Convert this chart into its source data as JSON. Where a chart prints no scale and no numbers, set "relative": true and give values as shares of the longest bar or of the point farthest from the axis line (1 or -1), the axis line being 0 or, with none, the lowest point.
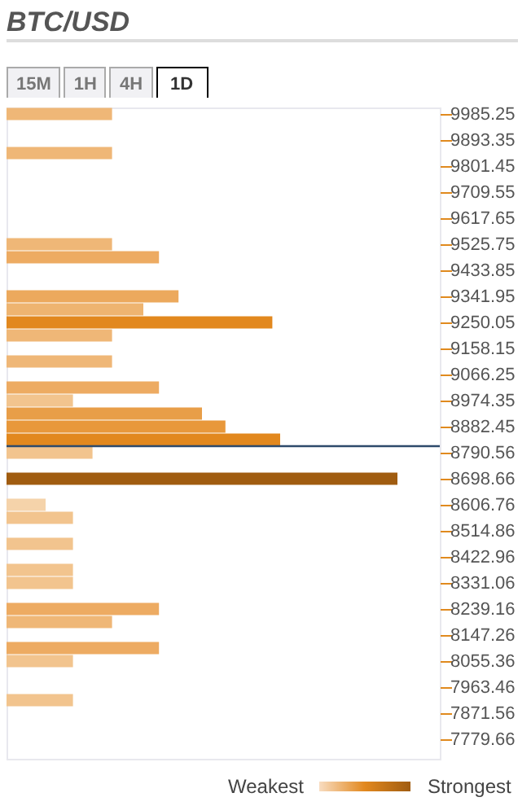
{
  "chart_data": {
    "type": "bar",
    "orientation": "horizontal",
    "relative": true,
    "title": "BTC/USD",
    "x": [
      9985.25,
      9847.4,
      9525.75,
      9479.8,
      9341.95,
      9296.0,
      9250.05,
      9204.1,
      9112.2,
      9020.3,
      8974.35,
      8928.4,
      8882.45,
      8836.5,
      8790.56,
      8698.66,
      8606.76,
      8560.81,
      8468.91,
      8377.01,
      8331.06,
      8239.16,
      8193.21,
      8101.31,
      8055.36,
      7917.51
    ],
    "values": [
      0.27,
      0.27,
      0.27,
      0.39,
      0.44,
      0.35,
      0.68,
      0.27,
      0.27,
      0.39,
      0.17,
      0.5,
      0.56,
      0.7,
      0.22,
      1,
      0.1,
      0.17,
      0.17,
      0.17,
      0.17,
      0.39,
      0.27,
      0.39,
      0.17,
      0.17
    ],
    "colors": [
      "#efb777",
      "#efb777",
      "#efb777",
      "#edab62",
      "#eca95d",
      "#eeb470",
      "#e2881e",
      "#efb777",
      "#efb777",
      "#edab62",
      "#f2c48e",
      "#e89e48",
      "#e8983b",
      "#e2881e",
      "#f2c48e",
      "#a05c10",
      "#f5d3aa",
      "#f2c48e",
      "#f2c48e",
      "#f2c48e",
      "#f2c48e",
      "#edab62",
      "#efb777",
      "#edab62",
      "#f2c48e",
      "#f2c48e"
    ],
    "ylim": [
      7710.73,
      10008.23
    ],
    "yticks": [
      9985.25,
      9893.35,
      9801.45,
      9709.55,
      9617.65,
      9525.75,
      9433.85,
      9341.95,
      9250.05,
      9158.15,
      9066.25,
      8974.35,
      8882.45,
      8790.56,
      8698.66,
      8606.76,
      8514.86,
      8422.96,
      8331.06,
      8239.16,
      8147.26,
      8055.36,
      7963.46,
      7871.56,
      7779.66
    ],
    "ref_lines": [
      {
        "axis": "y",
        "value": 8813.5,
        "color": "#2d4a6b"
      }
    ],
    "annotations": [
      "15M",
      "1H",
      "4H",
      "1D",
      "Weakest",
      "Strongest"
    ]
  }
}
